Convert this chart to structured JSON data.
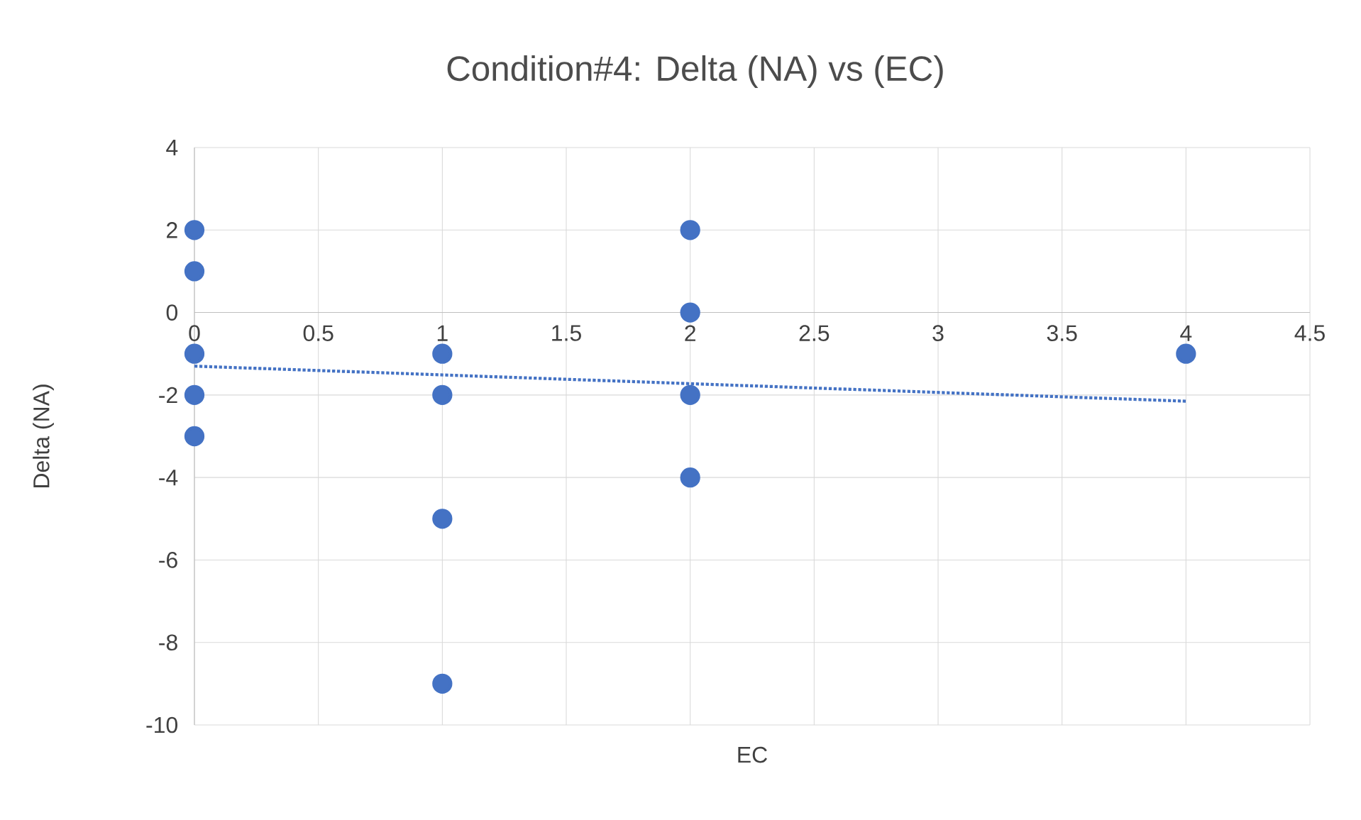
{
  "chart_data": {
    "type": "scatter",
    "title": "Condition#4: Delta (NA) vs (EC)",
    "xlabel": "EC",
    "ylabel": "Delta (NA)",
    "xlim": [
      0,
      4.5
    ],
    "ylim": [
      -10,
      4
    ],
    "xticks": [
      0,
      0.5,
      1,
      1.5,
      2,
      2.5,
      3,
      3.5,
      4,
      4.5
    ],
    "yticks": [
      -10,
      -8,
      -6,
      -4,
      -2,
      0,
      2,
      4
    ],
    "grid": true,
    "marker": "circle",
    "series": [
      {
        "color": "#4472c4",
        "x": [
          0,
          0,
          0,
          0,
          0,
          1,
          1,
          1,
          1,
          2,
          2,
          2,
          2,
          4
        ],
        "values": [
          2,
          1,
          -1,
          -2,
          -3,
          -1,
          -2,
          -5,
          -9,
          2,
          0,
          -2,
          -4,
          -1
        ]
      },
      {
        "type": "line",
        "color": "#4472c4",
        "line_style": "dotted",
        "marker": "none",
        "x": [
          0,
          4
        ],
        "values": [
          -1.3,
          -2.15
        ]
      }
    ]
  }
}
